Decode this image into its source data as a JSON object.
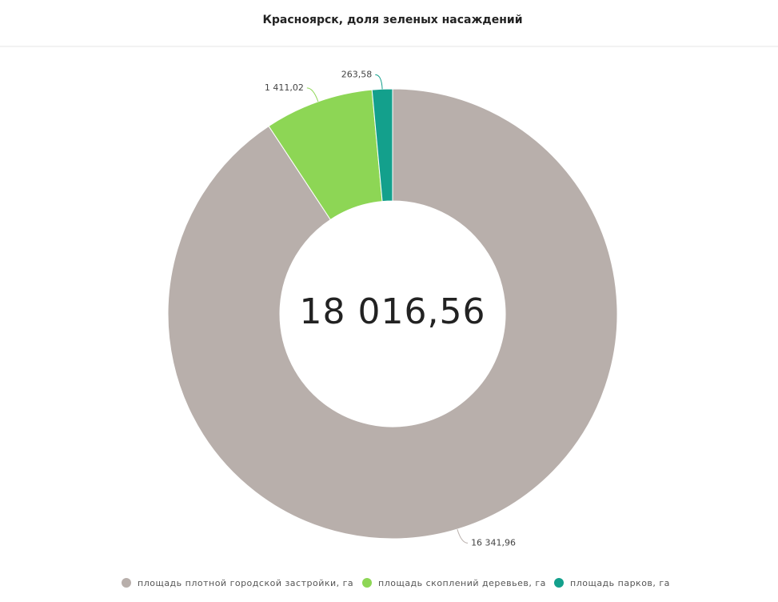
{
  "chart_data": {
    "type": "donut",
    "title": "Красноярск, доля зеленых насаждений",
    "center_label": "18 016,56",
    "categories": [
      "площадь плотной городской застройки, га",
      "площадь скоплений деревьев, га",
      "площадь парков, га"
    ],
    "values": [
      16341.96,
      1411.02,
      263.58
    ],
    "value_labels": [
      "16 341,96",
      "1 411,02",
      "263,58"
    ],
    "colors": [
      "#b8afab",
      "#8dd655",
      "#13a08c"
    ]
  }
}
